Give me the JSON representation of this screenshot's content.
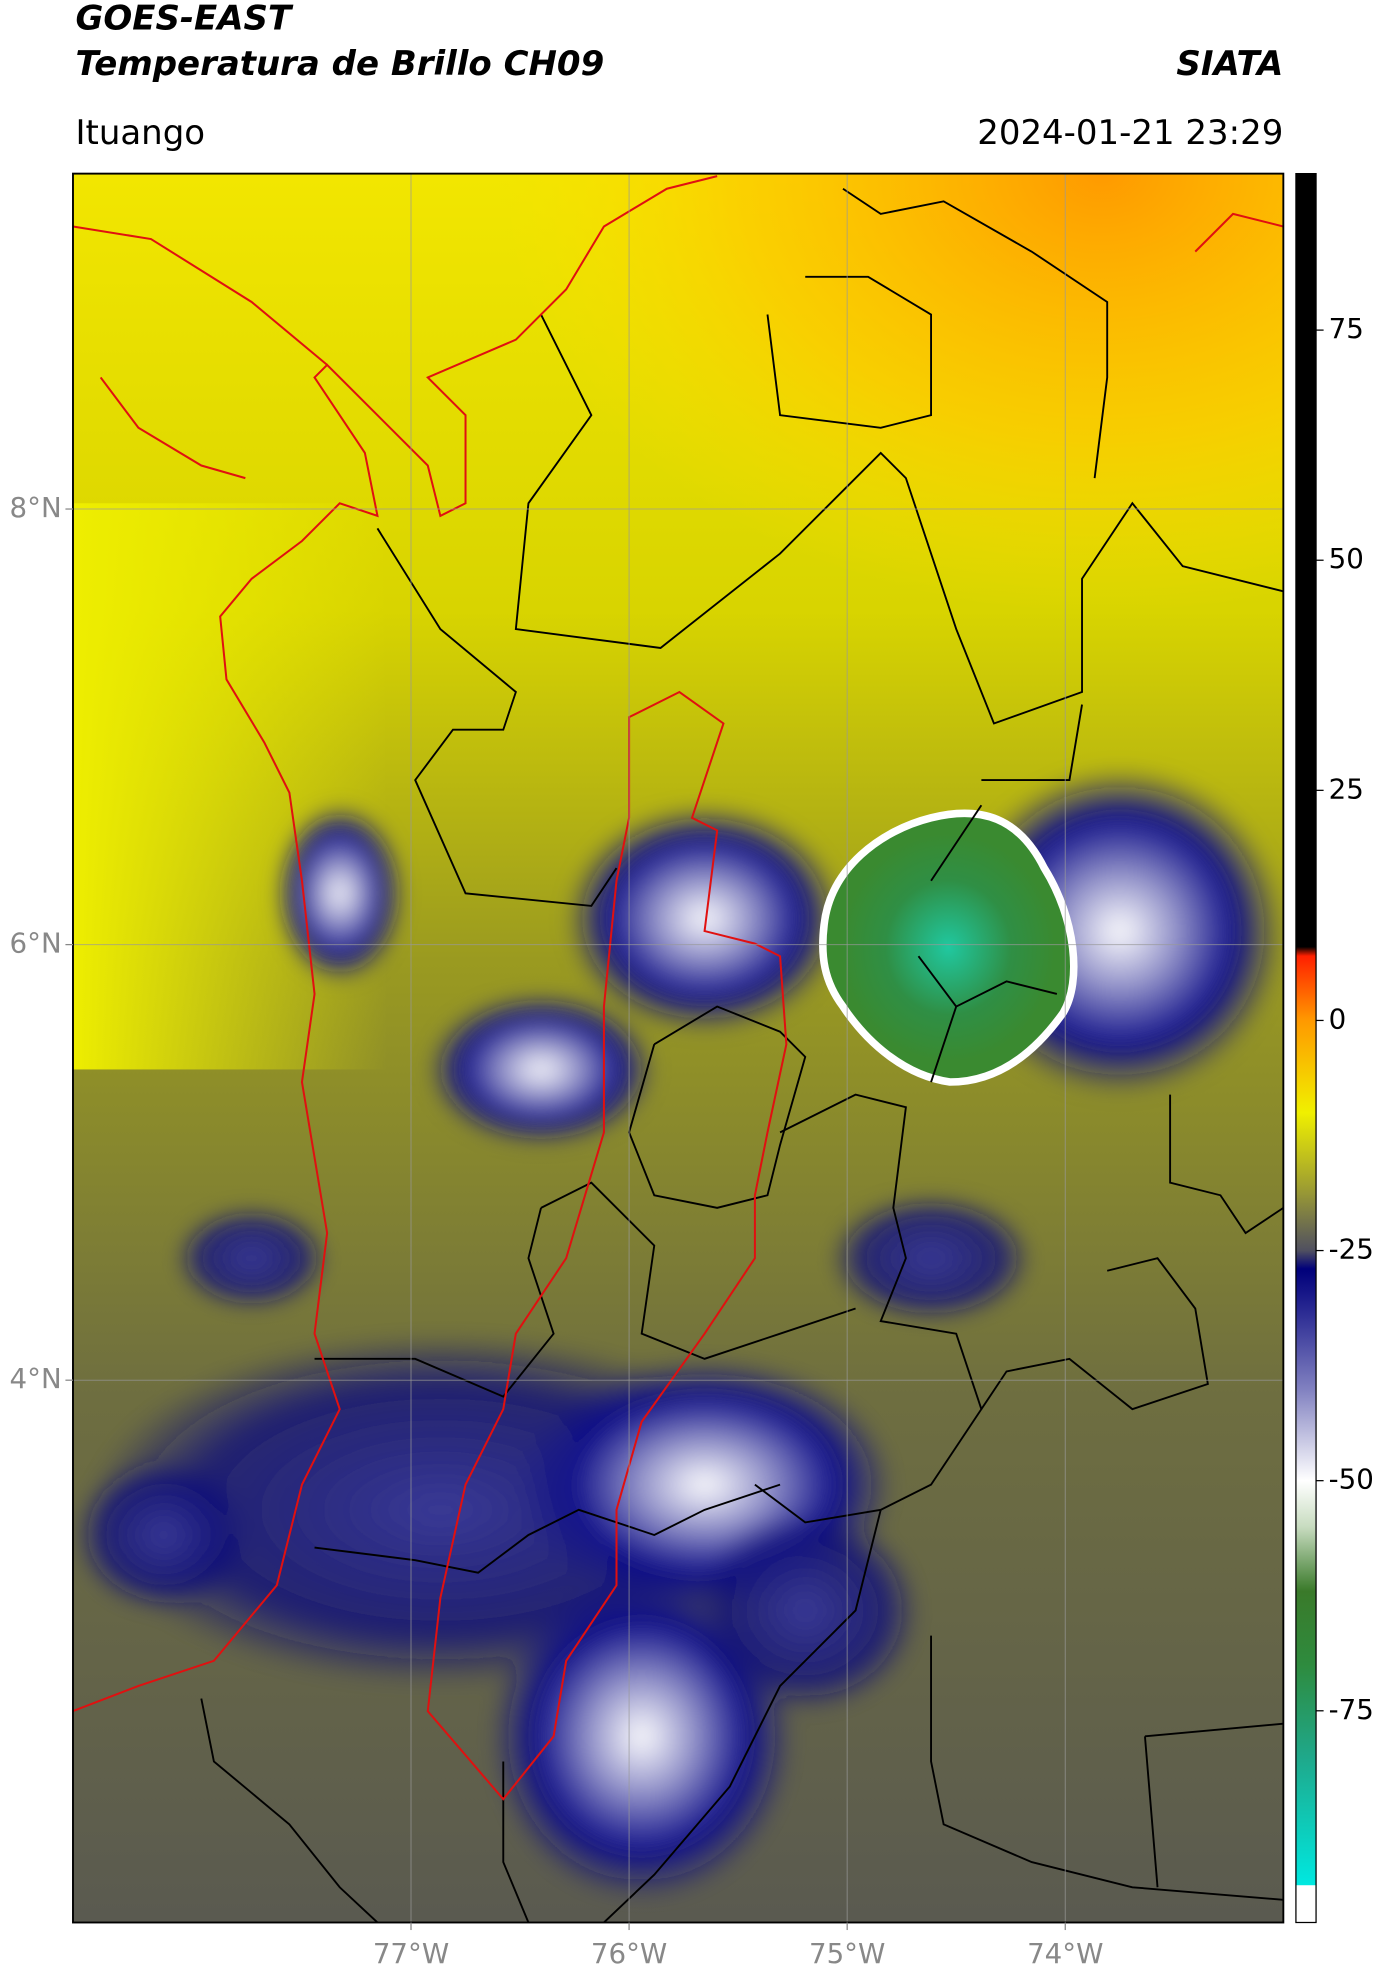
{
  "header": {
    "title": "GOES-EAST",
    "subtitle": "Temperatura de Brillo CH09",
    "brand": "SIATA",
    "location": "Ituango",
    "timestamp": "2024-01-21 23:29"
  },
  "map": {
    "xlim": [
      -78.55,
      -73.0
    ],
    "ylim": [
      1.51,
      9.54
    ],
    "xticks": [
      {
        "value": -77,
        "label": "77°W"
      },
      {
        "value": -76,
        "label": "76°W"
      },
      {
        "value": -75,
        "label": "75°W"
      },
      {
        "value": -74,
        "label": "74°W"
      }
    ],
    "yticks": [
      {
        "value": 8,
        "label": "8°N"
      },
      {
        "value": 6,
        "label": "6°N"
      },
      {
        "value": 4,
        "label": "4°N"
      }
    ],
    "grid": true
  },
  "colorbar": {
    "clim": [
      -98,
      92
    ],
    "ticks": [
      75,
      50,
      25,
      0,
      -25,
      -50,
      -75
    ],
    "stops": [
      {
        "value": -98,
        "color": "#ffffff"
      },
      {
        "value": -94,
        "color": "#ffffff"
      },
      {
        "value": -93.9,
        "color": "#00e8e0"
      },
      {
        "value": -80,
        "color": "#1fa88a"
      },
      {
        "value": -70,
        "color": "#2e8b3e"
      },
      {
        "value": -62,
        "color": "#3a7a2a"
      },
      {
        "value": -55,
        "color": "#c8dcc0"
      },
      {
        "value": -50,
        "color": "#ffffff"
      },
      {
        "value": -40,
        "color": "#8080c0"
      },
      {
        "value": -30,
        "color": "#1a1a8a"
      },
      {
        "value": -27,
        "color": "#00007a"
      },
      {
        "value": -25,
        "color": "#505060"
      },
      {
        "value": -18,
        "color": "#a0a030"
      },
      {
        "value": -10,
        "color": "#f0f000"
      },
      {
        "value": 0,
        "color": "#ff9900"
      },
      {
        "value": 7,
        "color": "#ff2000"
      },
      {
        "value": 8,
        "color": "#000000"
      },
      {
        "value": 92,
        "color": "#000000"
      }
    ]
  }
}
